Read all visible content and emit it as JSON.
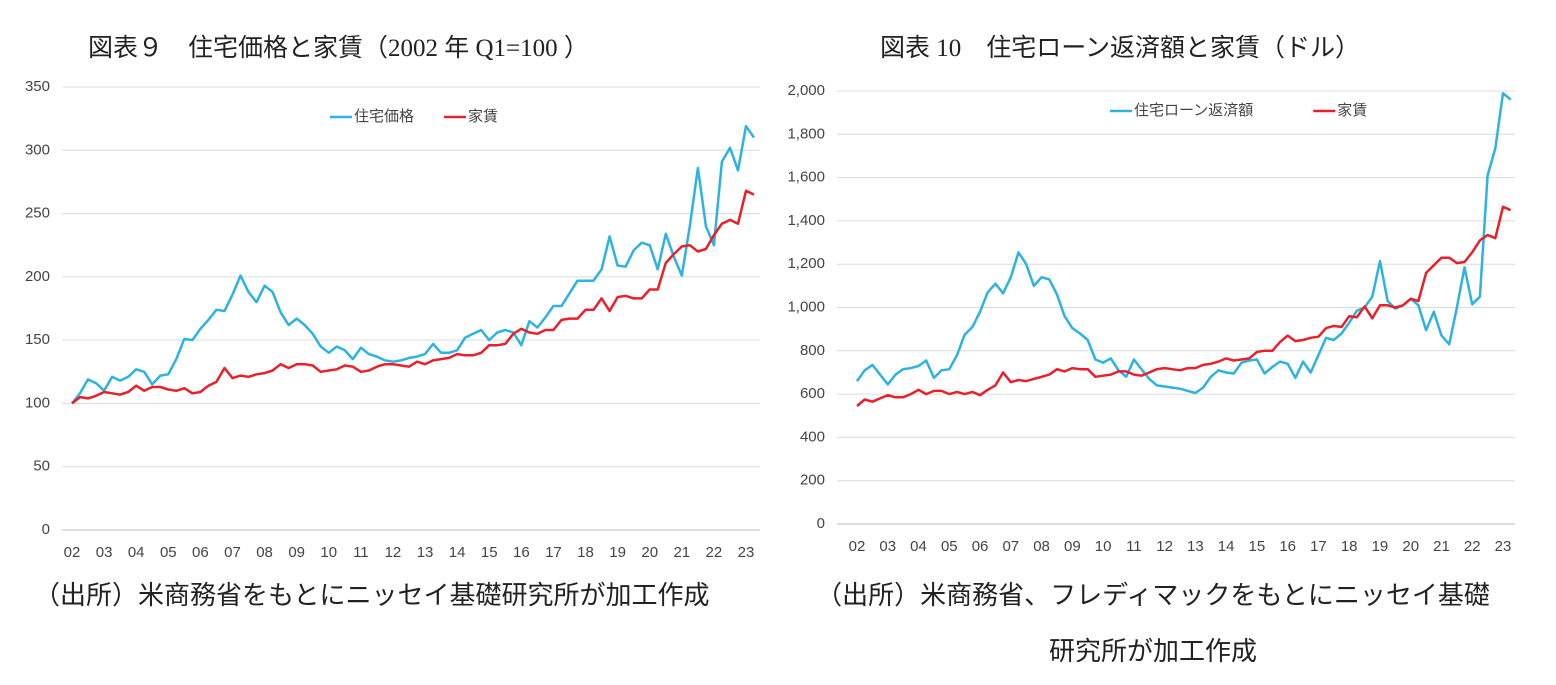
{
  "chart_data": [
    {
      "type": "line",
      "title": "図表９　住宅価格と家賃（2002 年 Q1=100 ）",
      "source": "（出所）米商務省をもとにニッセイ基礎研究所が加工作成",
      "categories": [
        "02",
        null,
        null,
        null,
        "03",
        null,
        null,
        null,
        "04",
        null,
        null,
        null,
        "05",
        null,
        null,
        null,
        "06",
        null,
        null,
        null,
        "07",
        null,
        null,
        null,
        "08",
        null,
        null,
        null,
        "09",
        null,
        null,
        null,
        "10",
        null,
        null,
        null,
        "11",
        null,
        null,
        null,
        "12",
        null,
        null,
        null,
        "13",
        null,
        null,
        null,
        "14",
        null,
        null,
        null,
        "15",
        null,
        null,
        null,
        "16",
        null,
        null,
        null,
        "17",
        null,
        null,
        null,
        "18",
        null,
        null,
        null,
        "19",
        null,
        null,
        null,
        "20",
        null,
        null,
        null,
        "21",
        null,
        null,
        null,
        "22",
        null,
        null,
        null,
        "23",
        null
      ],
      "series": [
        {
          "name": "住宅価格",
          "color": "#2eb2e0",
          "values": [
            100,
            108,
            119,
            116,
            110,
            121,
            118,
            121,
            127,
            125,
            115,
            122,
            123,
            135,
            151,
            150,
            159,
            166,
            174,
            173,
            186,
            201,
            188,
            180,
            193,
            188,
            172,
            162,
            167,
            162,
            155,
            145,
            140,
            145,
            142,
            135,
            144,
            139,
            137,
            134,
            133,
            134,
            136,
            137,
            139,
            147,
            140,
            140,
            142,
            152,
            155,
            158,
            150,
            156,
            158,
            156,
            146,
            165,
            160,
            168,
            177,
            177,
            187,
            197,
            197,
            197,
            206,
            232,
            209,
            208,
            221,
            227,
            225,
            206,
            234,
            216,
            201,
            240,
            286,
            240,
            225,
            291,
            302,
            284,
            319,
            310
          ]
        },
        {
          "name": "家賃",
          "color": "#e8202a",
          "values": [
            100,
            105,
            104,
            106,
            109,
            108,
            107,
            109,
            114,
            110,
            113,
            113,
            111,
            110,
            112,
            108,
            109,
            114,
            117,
            128,
            120,
            122,
            121,
            123,
            124,
            126,
            131,
            128,
            131,
            131,
            130,
            125,
            126,
            127,
            130,
            129,
            125,
            126,
            129,
            131,
            131,
            130,
            129,
            133,
            131,
            134,
            135,
            136,
            139,
            138,
            138,
            140,
            146,
            146,
            147,
            155,
            159,
            156,
            155,
            158,
            158,
            166,
            167,
            167,
            174,
            174,
            183,
            173,
            184,
            185,
            183,
            183,
            190,
            190,
            211,
            218,
            224,
            225,
            220,
            222,
            233,
            242,
            245,
            242,
            268,
            265
          ]
        }
      ],
      "ylim": [
        0,
        350
      ],
      "yticks": [
        0,
        50,
        100,
        150,
        200,
        250,
        300,
        350
      ],
      "grid": true,
      "legend": "top"
    },
    {
      "type": "line",
      "title": "図表 10　住宅ローン返済額と家賃（ドル）",
      "source": "（出所）米商務省、フレディマックをもとにニッセイ基礎研究所が加工作成",
      "categories": [
        "02",
        null,
        null,
        null,
        "03",
        null,
        null,
        null,
        "04",
        null,
        null,
        null,
        "05",
        null,
        null,
        null,
        "06",
        null,
        null,
        null,
        "07",
        null,
        null,
        null,
        "08",
        null,
        null,
        null,
        "09",
        null,
        null,
        null,
        "10",
        null,
        null,
        null,
        "11",
        null,
        null,
        null,
        "12",
        null,
        null,
        null,
        "13",
        null,
        null,
        null,
        "14",
        null,
        null,
        null,
        "15",
        null,
        null,
        null,
        "16",
        null,
        null,
        null,
        "17",
        null,
        null,
        null,
        "18",
        null,
        null,
        null,
        "19",
        null,
        null,
        null,
        "20",
        null,
        null,
        null,
        "21",
        null,
        null,
        null,
        "22",
        null,
        null,
        null,
        "23",
        null
      ],
      "series": [
        {
          "name": "住宅ローン返済額",
          "color": "#2eb2e0",
          "values": [
            660,
            710,
            735,
            690,
            645,
            690,
            715,
            720,
            730,
            755,
            675,
            710,
            715,
            780,
            875,
            910,
            980,
            1070,
            1110,
            1065,
            1140,
            1255,
            1200,
            1100,
            1140,
            1130,
            1060,
            960,
            905,
            880,
            850,
            760,
            745,
            765,
            710,
            680,
            760,
            715,
            670,
            640,
            635,
            630,
            625,
            615,
            605,
            630,
            680,
            710,
            700,
            695,
            745,
            755,
            760,
            695,
            725,
            750,
            740,
            675,
            750,
            700,
            780,
            860,
            850,
            880,
            930,
            985,
            1000,
            1050,
            1215,
            1030,
            995,
            1010,
            1040,
            1010,
            895,
            980,
            870,
            830,
            1000,
            1185,
            1015,
            1050,
            1610,
            1735,
            1990,
            1960
          ]
        },
        {
          "name": "家賃",
          "color": "#e8202a",
          "values": [
            545,
            575,
            565,
            580,
            595,
            585,
            585,
            600,
            620,
            600,
            615,
            615,
            600,
            610,
            600,
            610,
            595,
            620,
            640,
            700,
            655,
            665,
            660,
            670,
            680,
            690,
            715,
            705,
            720,
            715,
            715,
            680,
            685,
            690,
            705,
            705,
            690,
            685,
            700,
            715,
            720,
            715,
            710,
            720,
            720,
            735,
            740,
            750,
            765,
            755,
            760,
            765,
            795,
            800,
            800,
            840,
            870,
            845,
            850,
            860,
            865,
            905,
            915,
            910,
            960,
            955,
            1005,
            950,
            1010,
            1010,
            1000,
            1010,
            1040,
            1030,
            1160,
            1195,
            1230,
            1230,
            1205,
            1210,
            1255,
            1310,
            1335,
            1320,
            1465,
            1450
          ]
        }
      ],
      "ylim": [
        0,
        2000
      ],
      "yticks": [
        0,
        200,
        400,
        600,
        800,
        {
          "value": 1000,
          "label": "1,000"
        },
        {
          "value": 1200,
          "label": "1,200"
        },
        {
          "value": 1400,
          "label": "1,400"
        },
        {
          "value": 1600,
          "label": "1,600"
        },
        {
          "value": 1800,
          "label": "1,800"
        },
        {
          "value": 2000,
          "label": "2,000"
        }
      ],
      "grid": true,
      "legend": "top"
    }
  ]
}
